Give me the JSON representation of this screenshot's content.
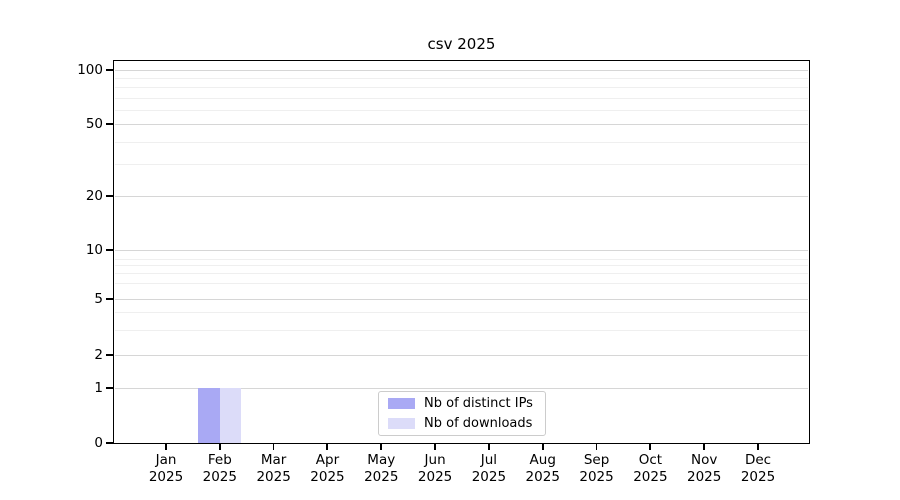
{
  "chart_data": {
    "type": "bar",
    "title": "csv 2025",
    "x_categories": [
      {
        "month": "Jan",
        "year": "2025"
      },
      {
        "month": "Feb",
        "year": "2025"
      },
      {
        "month": "Mar",
        "year": "2025"
      },
      {
        "month": "Apr",
        "year": "2025"
      },
      {
        "month": "May",
        "year": "2025"
      },
      {
        "month": "Jun",
        "year": "2025"
      },
      {
        "month": "Jul",
        "year": "2025"
      },
      {
        "month": "Aug",
        "year": "2025"
      },
      {
        "month": "Sep",
        "year": "2025"
      },
      {
        "month": "Oct",
        "year": "2025"
      },
      {
        "month": "Nov",
        "year": "2025"
      },
      {
        "month": "Dec",
        "year": "2025"
      }
    ],
    "series": [
      {
        "name": "Nb of distinct IPs",
        "color": "#a9a9f4",
        "values": [
          0,
          1,
          0,
          0,
          0,
          0,
          0,
          0,
          0,
          0,
          0,
          0
        ]
      },
      {
        "name": "Nb of downloads",
        "color": "#dcdcf9",
        "values": [
          0,
          1,
          0,
          0,
          0,
          0,
          0,
          0,
          0,
          0,
          0,
          0
        ]
      }
    ],
    "y_axis": {
      "scale": "symlog",
      "major_ticks": [
        100,
        50,
        20,
        10,
        5,
        2,
        1,
        0
      ],
      "minor_ticks": [
        90,
        80,
        70,
        60,
        40,
        30,
        9,
        8,
        7,
        6,
        4,
        3
      ],
      "range": [
        0,
        115
      ],
      "grid": "both"
    },
    "legend": {
      "position": "inside-bottom-center",
      "entries": [
        "Nb of distinct IPs",
        "Nb of downloads"
      ]
    }
  },
  "colors": {
    "background": "#ffffff",
    "axis": "#000000",
    "grid_major": "#d6d6d6",
    "grid_minor": "#efefef",
    "bar_distinct_ips": "#a9a9f4",
    "bar_downloads": "#dcdcf9",
    "legend_border": "#cccccc"
  }
}
